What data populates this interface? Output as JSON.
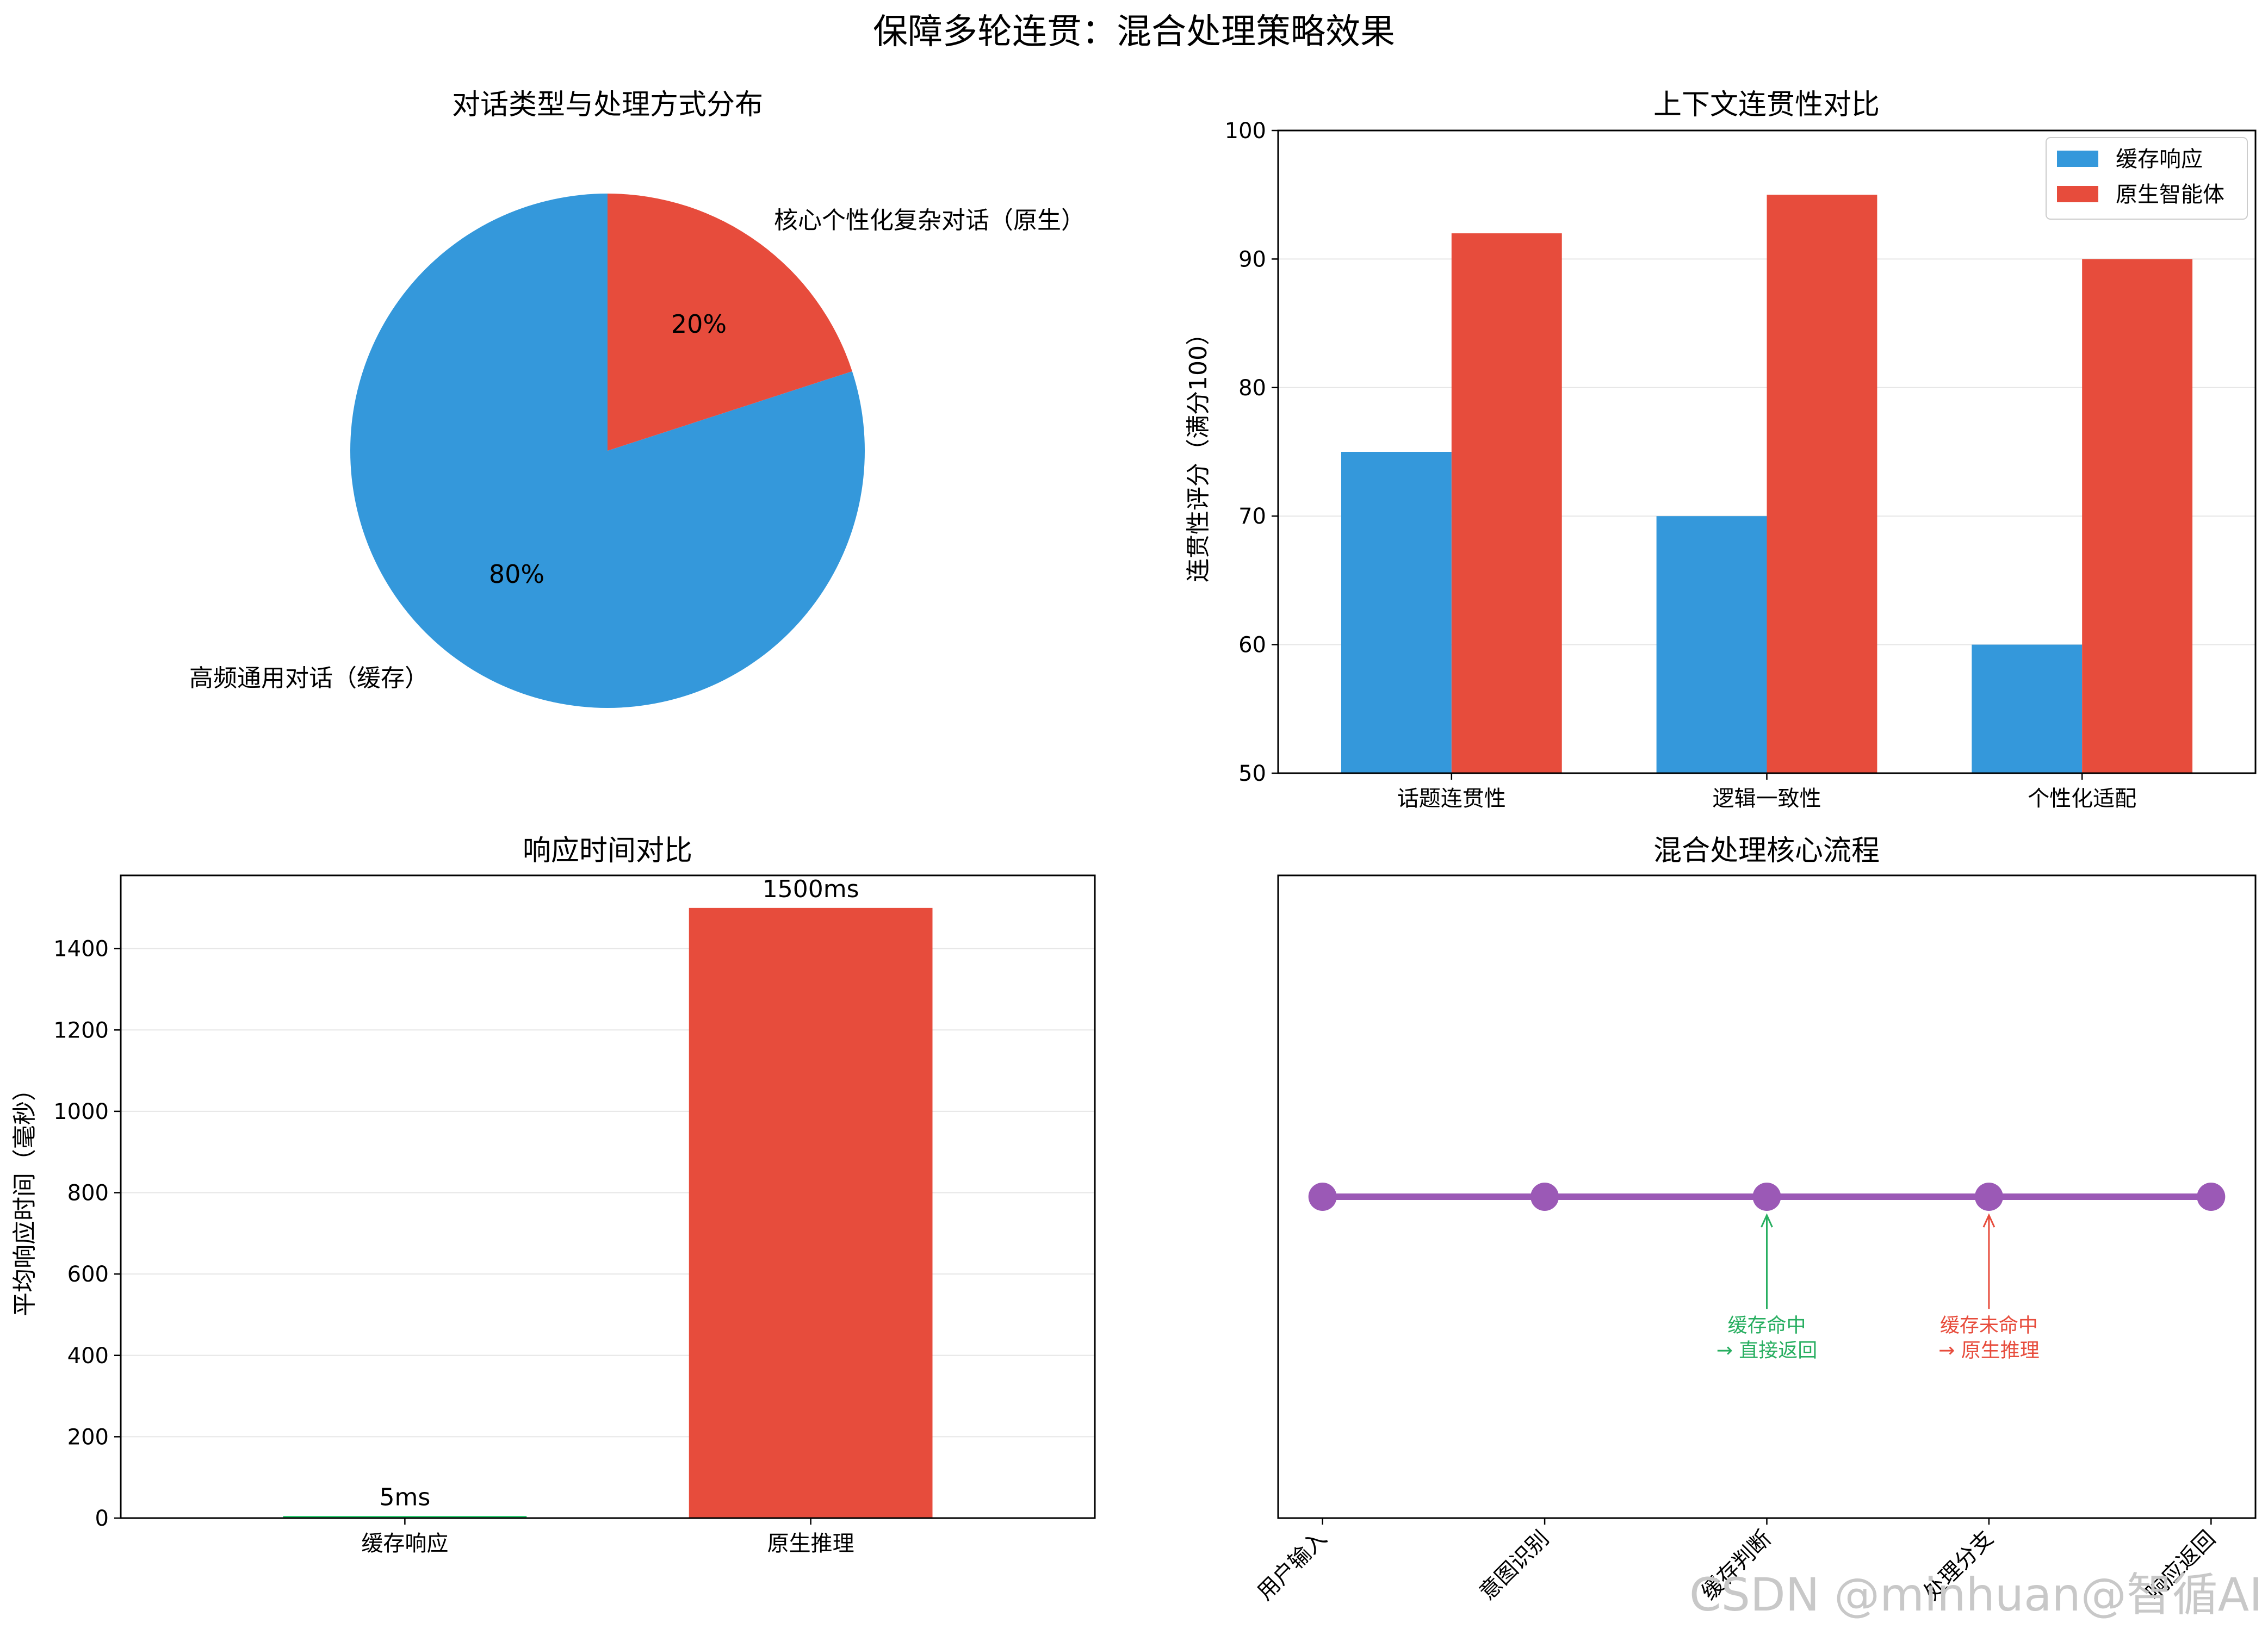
{
  "figure": {
    "suptitle": "保障多轮连贯：混合处理策略效果",
    "watermark": "CSDN @minhuan@智循AI"
  },
  "chart_data": [
    {
      "type": "pie",
      "title": "对话类型与处理方式分布",
      "labels": [
        "高频通用对话（缓存）",
        "核心个性化复杂对话（原生）"
      ],
      "values": [
        80,
        20
      ],
      "percent_labels": [
        "80%",
        "20%"
      ],
      "colors": [
        "#3498db",
        "#e74c3c"
      ]
    },
    {
      "type": "bar",
      "title": "上下文连贯性对比",
      "categories": [
        "话题连贯性",
        "逻辑一致性",
        "个性化适配"
      ],
      "series": [
        {
          "name": "缓存响应",
          "values": [
            75,
            70,
            60
          ],
          "color": "#3498db"
        },
        {
          "name": "原生智能体",
          "values": [
            92,
            95,
            90
          ],
          "color": "#e74c3c"
        }
      ],
      "xlabel": "",
      "ylabel": "连贯性评分（满分100）",
      "ylim": [
        50,
        100
      ],
      "yticks": [
        50,
        60,
        70,
        80,
        90,
        100
      ],
      "grid": "y",
      "legend": "top-right"
    },
    {
      "type": "bar",
      "title": "响应时间对比",
      "categories": [
        "缓存响应",
        "原生推理"
      ],
      "values": [
        5,
        1500
      ],
      "value_labels": [
        "5ms",
        "1500ms"
      ],
      "colors": [
        "#2ecc71",
        "#e74c3c"
      ],
      "xlabel": "",
      "ylabel": "平均响应时间（毫秒）",
      "ylim": [
        0,
        1580
      ],
      "yticks": [
        0,
        200,
        400,
        600,
        800,
        1000,
        1200,
        1400
      ],
      "grid": "y"
    },
    {
      "type": "line",
      "title": "混合处理核心流程",
      "categories": [
        "用户输入",
        "意图识别",
        "缓存判断",
        "处理分支",
        "响应返回"
      ],
      "color": "#9b59b6",
      "annotations": [
        {
          "at": "缓存判断",
          "lines": [
            "缓存命中",
            "→ 直接返回"
          ],
          "color": "#27ae60"
        },
        {
          "at": "处理分支",
          "lines": [
            "缓存未命中",
            "→ 原生推理"
          ],
          "color": "#e74c3c"
        }
      ]
    }
  ]
}
